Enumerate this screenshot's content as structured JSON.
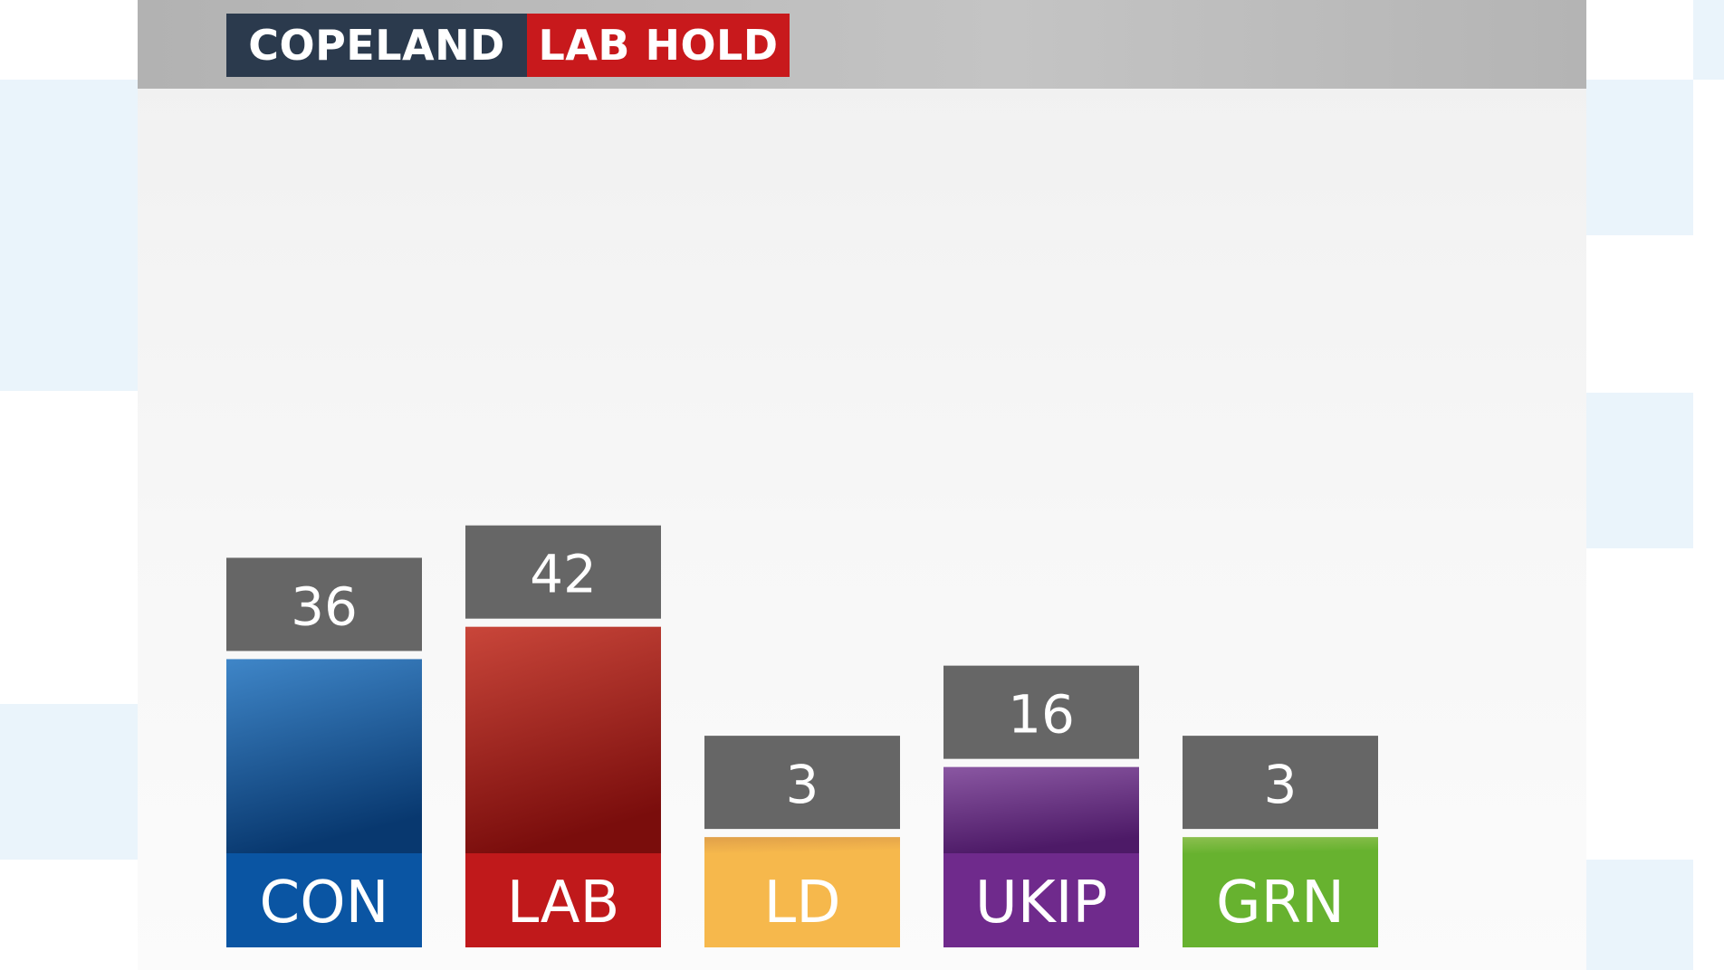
{
  "header": {
    "constituency": "COPELAND",
    "result": "LAB HOLD"
  },
  "colors": {
    "header_dark": "#2b3a4d",
    "header_red": "#c8191c",
    "value_box": "#666666"
  },
  "chart_data": {
    "type": "bar",
    "title": "",
    "xlabel": "",
    "ylabel": "",
    "ylim": [
      0,
      60
    ],
    "grid": false,
    "categories": [
      "CON",
      "LAB",
      "LD",
      "UKIP",
      "GRN"
    ],
    "values": [
      36,
      42,
      3,
      16,
      3
    ],
    "data_labels": [
      "36",
      "42",
      "3",
      "16",
      "3"
    ],
    "colors": [
      "#0a55a3",
      "#c0191b",
      "#f6b84c",
      "#6f2a8c",
      "#67b22f"
    ],
    "gradient_tops": [
      "#3f86c8",
      "#c9463a",
      "#e0a04a",
      "#8a57a2",
      "#8cbf4f"
    ],
    "gradient_bottoms": [
      "#08386f",
      "#7a0d0c",
      "#f6b84c",
      "#4d1a67",
      "#67b22f"
    ]
  }
}
